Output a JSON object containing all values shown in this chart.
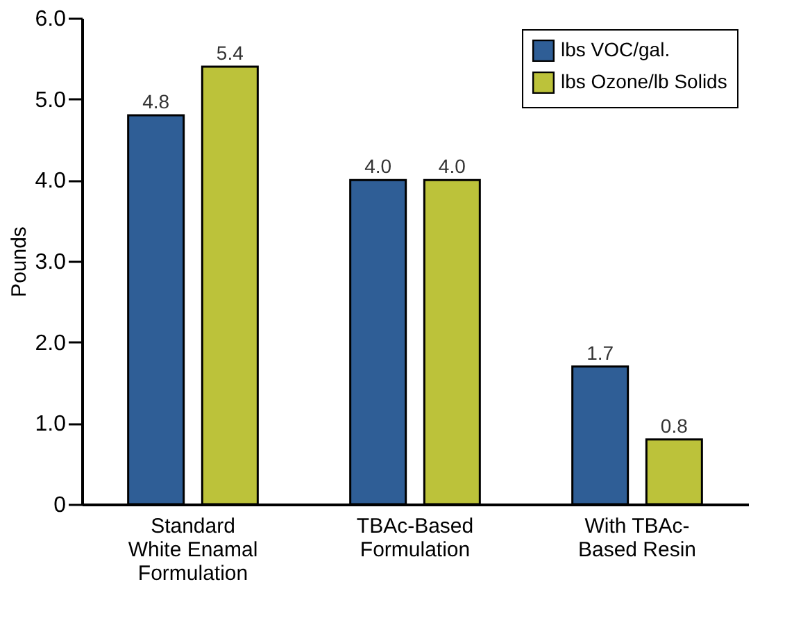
{
  "chart_data": {
    "type": "bar",
    "ylabel": "Pounds",
    "categories": [
      "Standard White Enamal Formulation",
      "TBAc-Based Formulation",
      "With TBAc-Based Resin"
    ],
    "series": [
      {
        "name": "lbs VOC/gal.",
        "color": "#2f5e96",
        "values": [
          4.8,
          4.0,
          1.7
        ]
      },
      {
        "name": "lbs Ozone/lb Solids",
        "color": "#bcc23a",
        "values": [
          5.4,
          4.0,
          0.8
        ]
      }
    ],
    "ylim": [
      0,
      6
    ],
    "yticks": [
      0,
      {
        "value": 1,
        "label": "1.0"
      },
      {
        "value": 2,
        "label": "2.0"
      },
      {
        "value": 3,
        "label": "3.0"
      },
      {
        "value": 4,
        "label": "4.0"
      },
      {
        "value": 5,
        "label": "5.0"
      },
      {
        "value": 6,
        "label": "6.0"
      }
    ],
    "value_labels": [
      [
        "4.8",
        "4.0",
        "1.7"
      ],
      [
        "5.4",
        "4.0",
        "0.8"
      ]
    ],
    "grid": false,
    "legend": "top right"
  }
}
